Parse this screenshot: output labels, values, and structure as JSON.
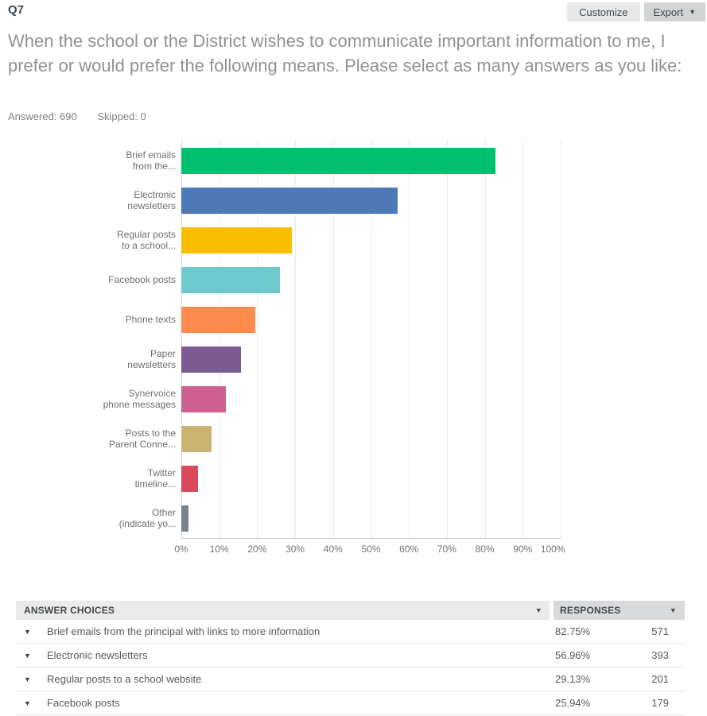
{
  "header": {
    "question_number": "Q7",
    "customize_label": "Customize",
    "export_label": "Export",
    "question_text": "When the school or the District wishes to communicate important information to me, I prefer or would prefer the following means. Please select as many answers as you like:",
    "answered": "Answered: 690",
    "skipped": "Skipped: 0"
  },
  "icons": {
    "chevron_down": "▼",
    "sort_down": "▼",
    "row_expand": "▼"
  },
  "chart_data": {
    "type": "bar",
    "orientation": "horizontal",
    "title": "",
    "xlabel": "",
    "ylabel": "",
    "xlim": [
      0,
      100
    ],
    "grid": true,
    "x_tick_labels": [
      "0%",
      "10%",
      "20%",
      "30%",
      "40%",
      "50%",
      "60%",
      "70%",
      "80%",
      "90%",
      "100%"
    ],
    "categories": [
      "Brief emails from the...",
      "Electronic newsletters",
      "Regular posts to a school...",
      "Facebook posts",
      "Phone texts",
      "Paper newsletters",
      "Synervoice phone messages",
      "Posts to the Parent Conne...",
      "Twitter timeline...",
      "Other (indicate yo..."
    ],
    "label_lines": [
      [
        "Brief emails",
        "from the..."
      ],
      [
        "Electronic",
        "newsletters"
      ],
      [
        "Regular posts",
        "to a school..."
      ],
      [
        "Facebook posts"
      ],
      [
        "Phone texts"
      ],
      [
        "Paper",
        "newsletters"
      ],
      [
        "Synervoice",
        "phone messages"
      ],
      [
        "Posts to the",
        "Parent Conne..."
      ],
      [
        "Twitter",
        "timeline..."
      ],
      [
        "Other",
        "(indicate yo..."
      ]
    ],
    "values": [
      82.75,
      56.96,
      29.13,
      25.94,
      19.6,
      15.8,
      11.8,
      7.9,
      4.3,
      1.8
    ],
    "bar_colors": [
      "#00BF6F",
      "#4E79B6",
      "#F9BE00",
      "#6FC9CC",
      "#FF8B4F",
      "#7A5C92",
      "#CE6090",
      "#C9B572",
      "#DA4A5C",
      "#79828C"
    ]
  },
  "table": {
    "header": {
      "answer_choices": "ANSWER CHOICES",
      "responses": "RESPONSES"
    },
    "rows": [
      {
        "choice": "Brief emails from the principal with links to more information",
        "percent": "82.75%",
        "count": "571"
      },
      {
        "choice": "Electronic newsletters",
        "percent": "56.96%",
        "count": "393"
      },
      {
        "choice": "Regular posts to a school website",
        "percent": "29.13%",
        "count": "201"
      },
      {
        "choice": "Facebook posts",
        "percent": "25.94%",
        "count": "179"
      }
    ]
  },
  "colors": {
    "customize_bg": "#E8E8E8",
    "export_bg": "#D3D4D4",
    "grid_line": "#E9E9E9",
    "axis_line": "#C8CACB",
    "question_text": "#8F9295"
  }
}
